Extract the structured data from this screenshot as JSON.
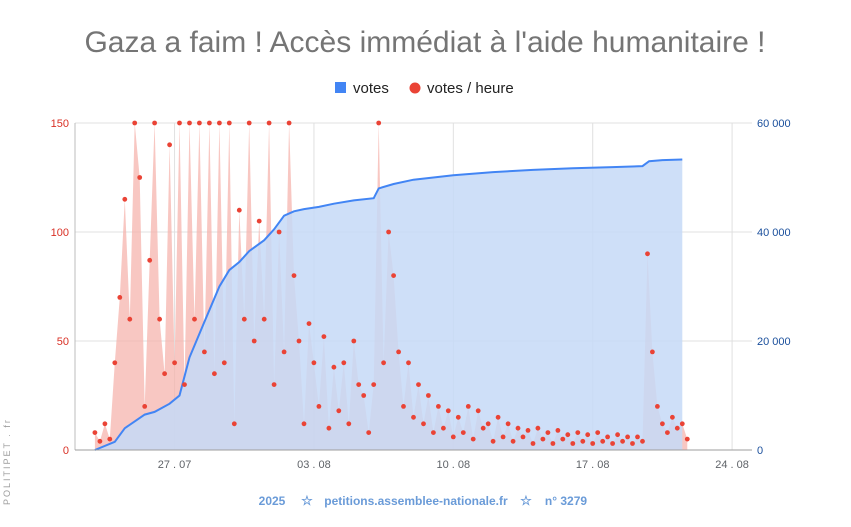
{
  "chart_data": {
    "type": "line",
    "title": "Gaza a faim ! Accès immédiat à l'aide humanitaire !",
    "legend": {
      "position": "top-center",
      "items": [
        {
          "name": "votes",
          "color": "#4285f4",
          "marker": "square"
        },
        {
          "name": "votes / heure",
          "color": "#ea4335",
          "marker": "circle"
        }
      ]
    },
    "x_axis": {
      "start": "2025-07-22",
      "end": "2025-08-25",
      "ticks": [
        "27 . 07",
        "03 . 08",
        "10 . 08",
        "17 . 08",
        "24 . 08"
      ],
      "tick_dates": [
        "2025-07-27",
        "2025-08-03",
        "2025-08-10",
        "2025-08-17",
        "2025-08-24"
      ]
    },
    "y_left": {
      "label": "",
      "range": [
        0,
        150
      ],
      "ticks": [
        "0",
        "50",
        "100",
        "150"
      ],
      "color": "#d93025"
    },
    "y_right": {
      "label": "",
      "range": [
        0,
        60000
      ],
      "ticks": [
        "0",
        "20 000",
        "40 000",
        "60 000"
      ],
      "color": "#1a4f9c"
    },
    "grid": true,
    "series": [
      {
        "name": "votes",
        "axis": "right",
        "color": "#4285f4",
        "fill": "#c6d9f7",
        "points": [
          [
            "2025-07-23 00:00",
            0
          ],
          [
            "2025-07-24 00:00",
            1500
          ],
          [
            "2025-07-24 12:00",
            4000
          ],
          [
            "2025-07-25 12:00",
            6500
          ],
          [
            "2025-07-26 00:00",
            7000
          ],
          [
            "2025-07-26 18:00",
            8500
          ],
          [
            "2025-07-27 06:00",
            10000
          ],
          [
            "2025-07-27 18:00",
            17000
          ],
          [
            "2025-07-28 12:00",
            23500
          ],
          [
            "2025-07-29 06:00",
            30000
          ],
          [
            "2025-07-29 18:00",
            33000
          ],
          [
            "2025-07-30 06:00",
            34500
          ],
          [
            "2025-07-30 18:00",
            36500
          ],
          [
            "2025-07-31 12:00",
            38500
          ],
          [
            "2025-08-01 00:00",
            40500
          ],
          [
            "2025-08-01 12:00",
            43000
          ],
          [
            "2025-08-02 00:00",
            43800
          ],
          [
            "2025-08-02 12:00",
            44200
          ],
          [
            "2025-08-03 06:00",
            44600
          ],
          [
            "2025-08-04 00:00",
            45200
          ],
          [
            "2025-08-05 00:00",
            45800
          ],
          [
            "2025-08-06 00:00",
            46200
          ],
          [
            "2025-08-06 06:00",
            48000
          ],
          [
            "2025-08-07 00:00",
            48800
          ],
          [
            "2025-08-08 00:00",
            49600
          ],
          [
            "2025-08-09 00:00",
            50000
          ],
          [
            "2025-08-10 00:00",
            50400
          ],
          [
            "2025-08-12 00:00",
            51000
          ],
          [
            "2025-08-14 00:00",
            51400
          ],
          [
            "2025-08-16 00:00",
            51700
          ],
          [
            "2025-08-18 00:00",
            51900
          ],
          [
            "2025-08-19 12:00",
            52100
          ],
          [
            "2025-08-19 20:00",
            53000
          ],
          [
            "2025-08-20 12:00",
            53200
          ],
          [
            "2025-08-21 12:00",
            53300
          ]
        ]
      },
      {
        "name": "votes / heure",
        "axis": "left",
        "color": "#ea4335",
        "fill": "#f5b4ad",
        "points": [
          [
            "2025-07-23 00:00",
            8
          ],
          [
            "2025-07-23 06:00",
            4
          ],
          [
            "2025-07-23 12:00",
            12
          ],
          [
            "2025-07-23 18:00",
            5
          ],
          [
            "2025-07-24 00:00",
            40
          ],
          [
            "2025-07-24 06:00",
            70
          ],
          [
            "2025-07-24 12:00",
            115
          ],
          [
            "2025-07-24 18:00",
            60
          ],
          [
            "2025-07-25 00:00",
            150
          ],
          [
            "2025-07-25 06:00",
            125
          ],
          [
            "2025-07-25 12:00",
            20
          ],
          [
            "2025-07-25 18:00",
            87
          ],
          [
            "2025-07-26 00:00",
            150
          ],
          [
            "2025-07-26 06:00",
            60
          ],
          [
            "2025-07-26 12:00",
            35
          ],
          [
            "2025-07-26 18:00",
            140
          ],
          [
            "2025-07-27 00:00",
            40
          ],
          [
            "2025-07-27 06:00",
            150
          ],
          [
            "2025-07-27 12:00",
            30
          ],
          [
            "2025-07-27 18:00",
            150
          ],
          [
            "2025-07-28 00:00",
            60
          ],
          [
            "2025-07-28 06:00",
            150
          ],
          [
            "2025-07-28 12:00",
            45
          ],
          [
            "2025-07-28 18:00",
            150
          ],
          [
            "2025-07-29 00:00",
            35
          ],
          [
            "2025-07-29 06:00",
            150
          ],
          [
            "2025-07-29 12:00",
            40
          ],
          [
            "2025-07-29 18:00",
            150
          ],
          [
            "2025-07-30 00:00",
            12
          ],
          [
            "2025-07-30 06:00",
            110
          ],
          [
            "2025-07-30 12:00",
            60
          ],
          [
            "2025-07-30 18:00",
            150
          ],
          [
            "2025-07-31 00:00",
            50
          ],
          [
            "2025-07-31 06:00",
            105
          ],
          [
            "2025-07-31 12:00",
            60
          ],
          [
            "2025-07-31 18:00",
            150
          ],
          [
            "2025-08-01 00:00",
            30
          ],
          [
            "2025-08-01 06:00",
            100
          ],
          [
            "2025-08-01 12:00",
            45
          ],
          [
            "2025-08-01 18:00",
            150
          ],
          [
            "2025-08-02 00:00",
            80
          ],
          [
            "2025-08-02 06:00",
            50
          ],
          [
            "2025-08-02 12:00",
            12
          ],
          [
            "2025-08-02 18:00",
            58
          ],
          [
            "2025-08-03 00:00",
            40
          ],
          [
            "2025-08-03 06:00",
            20
          ],
          [
            "2025-08-03 12:00",
            52
          ],
          [
            "2025-08-03 18:00",
            10
          ],
          [
            "2025-08-04 00:00",
            38
          ],
          [
            "2025-08-04 06:00",
            18
          ],
          [
            "2025-08-04 12:00",
            40
          ],
          [
            "2025-08-04 18:00",
            12
          ],
          [
            "2025-08-05 00:00",
            50
          ],
          [
            "2025-08-05 06:00",
            30
          ],
          [
            "2025-08-05 12:00",
            25
          ],
          [
            "2025-08-05 18:00",
            8
          ],
          [
            "2025-08-06 00:00",
            30
          ],
          [
            "2025-08-06 06:00",
            150
          ],
          [
            "2025-08-06 12:00",
            40
          ],
          [
            "2025-08-06 18:00",
            100
          ],
          [
            "2025-08-07 00:00",
            80
          ],
          [
            "2025-08-07 06:00",
            45
          ],
          [
            "2025-08-07 12:00",
            20
          ],
          [
            "2025-08-07 18:00",
            40
          ],
          [
            "2025-08-08 00:00",
            15
          ],
          [
            "2025-08-08 06:00",
            30
          ],
          [
            "2025-08-08 12:00",
            12
          ],
          [
            "2025-08-08 18:00",
            25
          ],
          [
            "2025-08-09 00:00",
            8
          ],
          [
            "2025-08-09 06:00",
            20
          ],
          [
            "2025-08-09 12:00",
            10
          ],
          [
            "2025-08-09 18:00",
            18
          ],
          [
            "2025-08-10 00:00",
            6
          ],
          [
            "2025-08-10 06:00",
            15
          ],
          [
            "2025-08-10 12:00",
            8
          ],
          [
            "2025-08-10 18:00",
            20
          ],
          [
            "2025-08-11 00:00",
            5
          ],
          [
            "2025-08-11 06:00",
            18
          ],
          [
            "2025-08-11 12:00",
            10
          ],
          [
            "2025-08-11 18:00",
            12
          ],
          [
            "2025-08-12 00:00",
            4
          ],
          [
            "2025-08-12 06:00",
            15
          ],
          [
            "2025-08-12 12:00",
            6
          ],
          [
            "2025-08-12 18:00",
            12
          ],
          [
            "2025-08-13 00:00",
            4
          ],
          [
            "2025-08-13 06:00",
            10
          ],
          [
            "2025-08-13 12:00",
            6
          ],
          [
            "2025-08-13 18:00",
            9
          ],
          [
            "2025-08-14 00:00",
            3
          ],
          [
            "2025-08-14 06:00",
            10
          ],
          [
            "2025-08-14 12:00",
            5
          ],
          [
            "2025-08-14 18:00",
            8
          ],
          [
            "2025-08-15 00:00",
            3
          ],
          [
            "2025-08-15 06:00",
            9
          ],
          [
            "2025-08-15 12:00",
            5
          ],
          [
            "2025-08-15 18:00",
            7
          ],
          [
            "2025-08-16 00:00",
            3
          ],
          [
            "2025-08-16 06:00",
            8
          ],
          [
            "2025-08-16 12:00",
            4
          ],
          [
            "2025-08-16 18:00",
            7
          ],
          [
            "2025-08-17 00:00",
            3
          ],
          [
            "2025-08-17 06:00",
            8
          ],
          [
            "2025-08-17 12:00",
            4
          ],
          [
            "2025-08-17 18:00",
            6
          ],
          [
            "2025-08-18 00:00",
            3
          ],
          [
            "2025-08-18 06:00",
            7
          ],
          [
            "2025-08-18 12:00",
            4
          ],
          [
            "2025-08-18 18:00",
            6
          ],
          [
            "2025-08-19 00:00",
            3
          ],
          [
            "2025-08-19 06:00",
            6
          ],
          [
            "2025-08-19 12:00",
            4
          ],
          [
            "2025-08-19 18:00",
            90
          ],
          [
            "2025-08-20 00:00",
            45
          ],
          [
            "2025-08-20 06:00",
            20
          ],
          [
            "2025-08-20 12:00",
            12
          ],
          [
            "2025-08-20 18:00",
            8
          ],
          [
            "2025-08-21 00:00",
            15
          ],
          [
            "2025-08-21 06:00",
            10
          ],
          [
            "2025-08-21 12:00",
            12
          ],
          [
            "2025-08-21 18:00",
            5
          ]
        ]
      }
    ]
  },
  "footer": {
    "year": "2025",
    "separator": "☆",
    "site": "petitions.assemblee-nationale.fr",
    "number": "n° 3279"
  },
  "watermark": "POLITIPET . fr"
}
